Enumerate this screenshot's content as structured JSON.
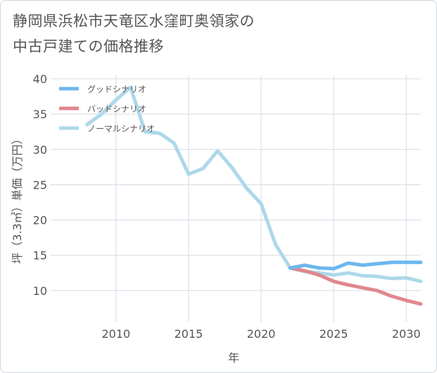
{
  "title_line1": "静岡県浜松市天竜区水窪町奥領家の",
  "title_line2": "中古戸建ての価格推移",
  "chart_data": {
    "type": "line",
    "xlabel": "年",
    "ylabel": "坪（3.3㎡）単価（万円）",
    "xlim": [
      2005.5,
      2031
    ],
    "ylim": [
      5.5,
      40.5
    ],
    "xticks": [
      2010,
      2015,
      2020,
      2025,
      2030
    ],
    "yticks": [
      10,
      15,
      20,
      25,
      30,
      35,
      40
    ],
    "grid": true,
    "legend_position": "top-left",
    "series": [
      {
        "name": "グッドシナリオ",
        "color": "#6cb7ef",
        "x": [
          2022,
          2023,
          2024,
          2025,
          2026,
          2027,
          2028,
          2029,
          2030,
          2031
        ],
        "y": [
          13.2,
          13.6,
          13.2,
          13.1,
          13.9,
          13.6,
          13.8,
          14.0,
          14.0,
          14.0
        ]
      },
      {
        "name": "バッドシナリオ",
        "color": "#e0878f",
        "x": [
          2022,
          2023,
          2024,
          2025,
          2026,
          2027,
          2028,
          2029,
          2030,
          2031
        ],
        "y": [
          13.2,
          12.8,
          12.2,
          11.3,
          10.8,
          10.4,
          10.0,
          9.2,
          8.6,
          8.1
        ]
      },
      {
        "name": "ノーマルシナリオ",
        "color": "#add8ea",
        "x": [
          2008,
          2009,
          2010,
          2011,
          2012,
          2013,
          2014,
          2015,
          2016,
          2017,
          2018,
          2019,
          2020,
          2021,
          2022,
          2023,
          2024,
          2025,
          2026,
          2027,
          2028,
          2029,
          2030,
          2031
        ],
        "y": [
          33.5,
          35.0,
          37.0,
          38.8,
          32.5,
          32.3,
          30.9,
          26.5,
          27.3,
          29.8,
          27.4,
          24.5,
          22.3,
          16.5,
          13.2,
          12.7,
          12.5,
          12.2,
          12.5,
          12.1,
          12.0,
          11.7,
          11.8,
          11.3
        ]
      }
    ]
  }
}
